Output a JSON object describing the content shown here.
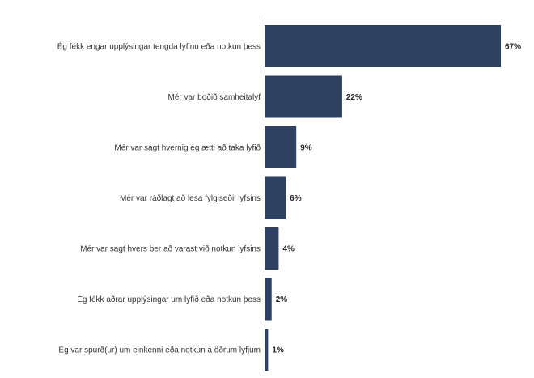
{
  "chart_data": {
    "type": "bar",
    "orientation": "horizontal",
    "categories": [
      "Ég fékk engar upplýsingar tengda lyfinu eða notkun þess",
      "Mér var boðið samheitalyf",
      "Mér var sagt hvernig ég ætti að taka lyfið",
      "Mér var ráðlagt að lesa fylgiseðil lyfsins",
      "Mér var sagt hvers ber að varast við notkun lyfsins",
      "Ég fékk aðrar upplýsingar um lyfið eða notkun þess",
      "Ég var spurð(ur) um einkenni eða notkun á öðrum lyfjum"
    ],
    "values": [
      67,
      22,
      9,
      6,
      4,
      2,
      1
    ],
    "value_labels": [
      "67%",
      "22%",
      "9%",
      "6%",
      "4%",
      "2%",
      "1%"
    ],
    "title": "",
    "xlabel": "",
    "ylabel": "",
    "xlim": [
      0,
      67
    ],
    "grid": false,
    "legend": "none",
    "bar_color": "#2e4160"
  }
}
